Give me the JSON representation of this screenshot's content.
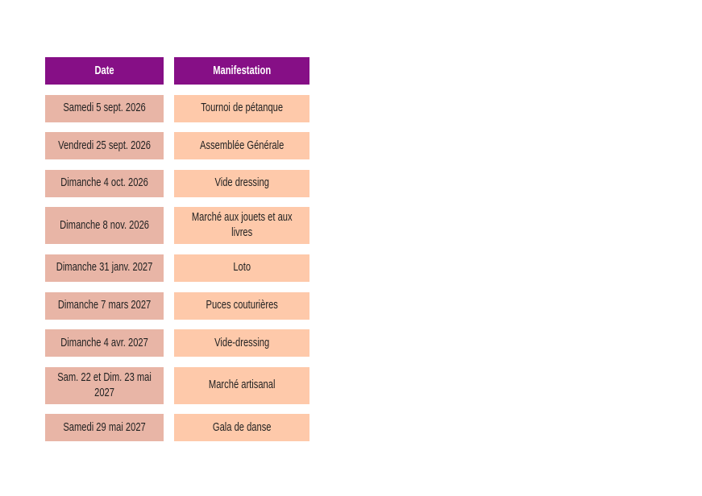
{
  "table": {
    "headers": [
      "Date",
      "Manifestation"
    ],
    "rows": [
      [
        "Samedi 5 sept. 2026",
        "Tournoi de pétanque"
      ],
      [
        "Vendredi 25 sept. 2026",
        "Assemblée Générale"
      ],
      [
        "Dimanche 4 oct. 2026",
        "Vide dressing"
      ],
      [
        "Dimanche 8 nov. 2026",
        "Marché aux jouets et aux livres"
      ],
      [
        "Dimanche 31 janv. 2027",
        "Loto"
      ],
      [
        "Dimanche 7 mars 2027",
        "Puces couturières"
      ],
      [
        "Dimanche 4 avr. 2027",
        "Vide-dressing"
      ],
      [
        "Sam. 22 et Dim. 23 mai 2027",
        "Marché artisanal"
      ],
      [
        "Samedi 29 mai 2027",
        "Gala de danse"
      ]
    ]
  }
}
